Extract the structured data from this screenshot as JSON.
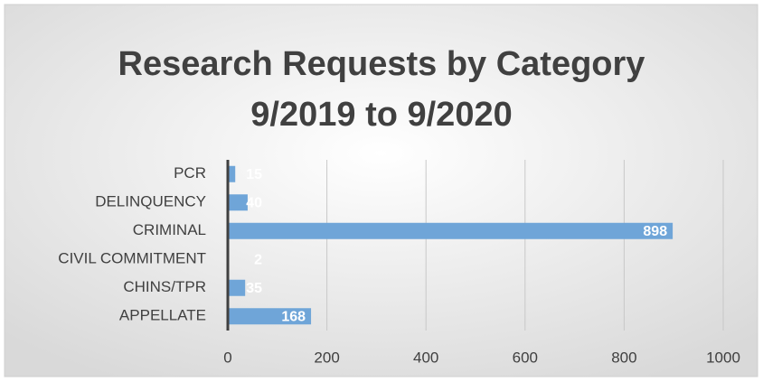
{
  "chart_data": {
    "type": "bar",
    "orientation": "horizontal",
    "title": [
      "Research Requests by Category",
      "9/2019 to 9/2020"
    ],
    "categories": [
      "PCR",
      "DELINQUENCY",
      "CRIMINAL",
      "CIVIL COMMITMENT",
      "CHINS/TPR",
      "APPELLATE"
    ],
    "values": [
      15,
      40,
      898,
      2,
      35,
      168
    ],
    "color": "#6fa5d8",
    "xlim": [
      0,
      1000
    ],
    "xticks": [
      0,
      200,
      400,
      600,
      800,
      1000
    ],
    "grid": true
  }
}
